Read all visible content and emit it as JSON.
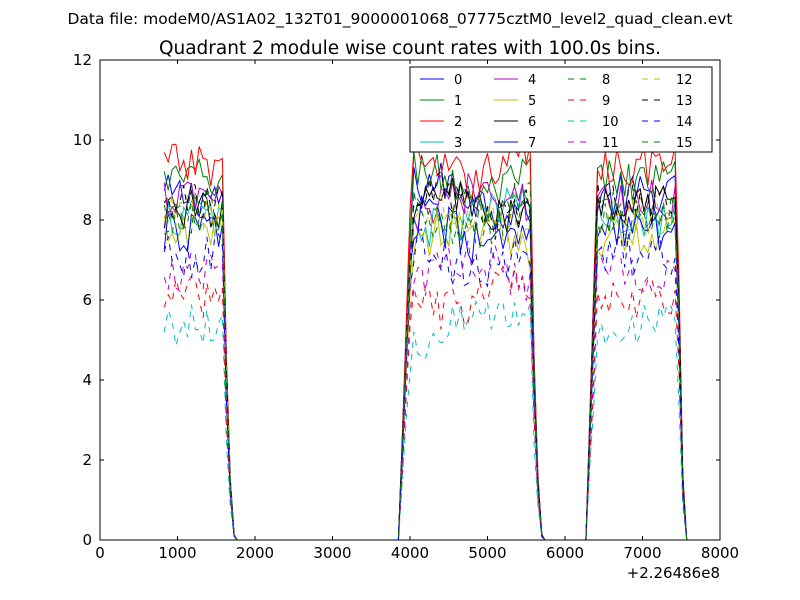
{
  "figure": {
    "suptitle": "Data file: modeM0/AS1A02_132T01_9000001068_07775cztM0_level2_quad_clean.evt"
  },
  "chart_data": {
    "type": "line",
    "title": "Quadrant 2 module wise count rates with 100.0s bins.",
    "xlabel": "",
    "ylabel": "",
    "x_offset_label": "+2.26486e8",
    "xlim": [
      0,
      8000
    ],
    "ylim": [
      0,
      12
    ],
    "xticks": [
      0,
      1000,
      2000,
      3000,
      4000,
      5000,
      6000,
      7000,
      8000
    ],
    "yticks": [
      0,
      2,
      4,
      6,
      8,
      10,
      12
    ],
    "grid": false,
    "legend_position": "top-right",
    "legend_columns": 4,
    "segments": [
      {
        "start": 830,
        "end": 1750,
        "rise_end": null,
        "fall_start": 1580
      },
      {
        "start": 3850,
        "end": 5720,
        "rise_end": 4030,
        "fall_start": 5550
      },
      {
        "start": 6270,
        "end": 7570,
        "rise_end": 6420,
        "fall_start": 7450
      }
    ],
    "series": [
      {
        "name": "0",
        "color": "#0000ff",
        "dash": "solid",
        "level": 8.6
      },
      {
        "name": "1",
        "color": "#008000",
        "dash": "solid",
        "level": 9.0
      },
      {
        "name": "2",
        "color": "#ff0000",
        "dash": "solid",
        "level": 9.4
      },
      {
        "name": "3",
        "color": "#00bfbf",
        "dash": "solid",
        "level": 8.1
      },
      {
        "name": "4",
        "color": "#bf00bf",
        "dash": "solid",
        "level": 8.5
      },
      {
        "name": "5",
        "color": "#bfbf00",
        "dash": "solid",
        "level": 7.6
      },
      {
        "name": "6",
        "color": "#000000",
        "dash": "solid",
        "level": 8.3
      },
      {
        "name": "7",
        "color": "#0000ff",
        "dash": "solid",
        "level": 7.7
      },
      {
        "name": "8",
        "color": "#008000",
        "dash": "dashed",
        "level": 8.0
      },
      {
        "name": "9",
        "color": "#ff0000",
        "dash": "dashed",
        "level": 6.1
      },
      {
        "name": "10",
        "color": "#00bfbf",
        "dash": "dashed",
        "level": 5.4
      },
      {
        "name": "11",
        "color": "#bf00bf",
        "dash": "dashed",
        "level": 6.7
      },
      {
        "name": "12",
        "color": "#bfbf00",
        "dash": "dashed",
        "level": 8.1
      },
      {
        "name": "13",
        "color": "#000000",
        "dash": "dashed",
        "level": 8.4
      },
      {
        "name": "14",
        "color": "#0000ff",
        "dash": "dashed",
        "level": 7.1
      },
      {
        "name": "15",
        "color": "#008000",
        "dash": "dashed",
        "level": 8.2
      }
    ]
  }
}
